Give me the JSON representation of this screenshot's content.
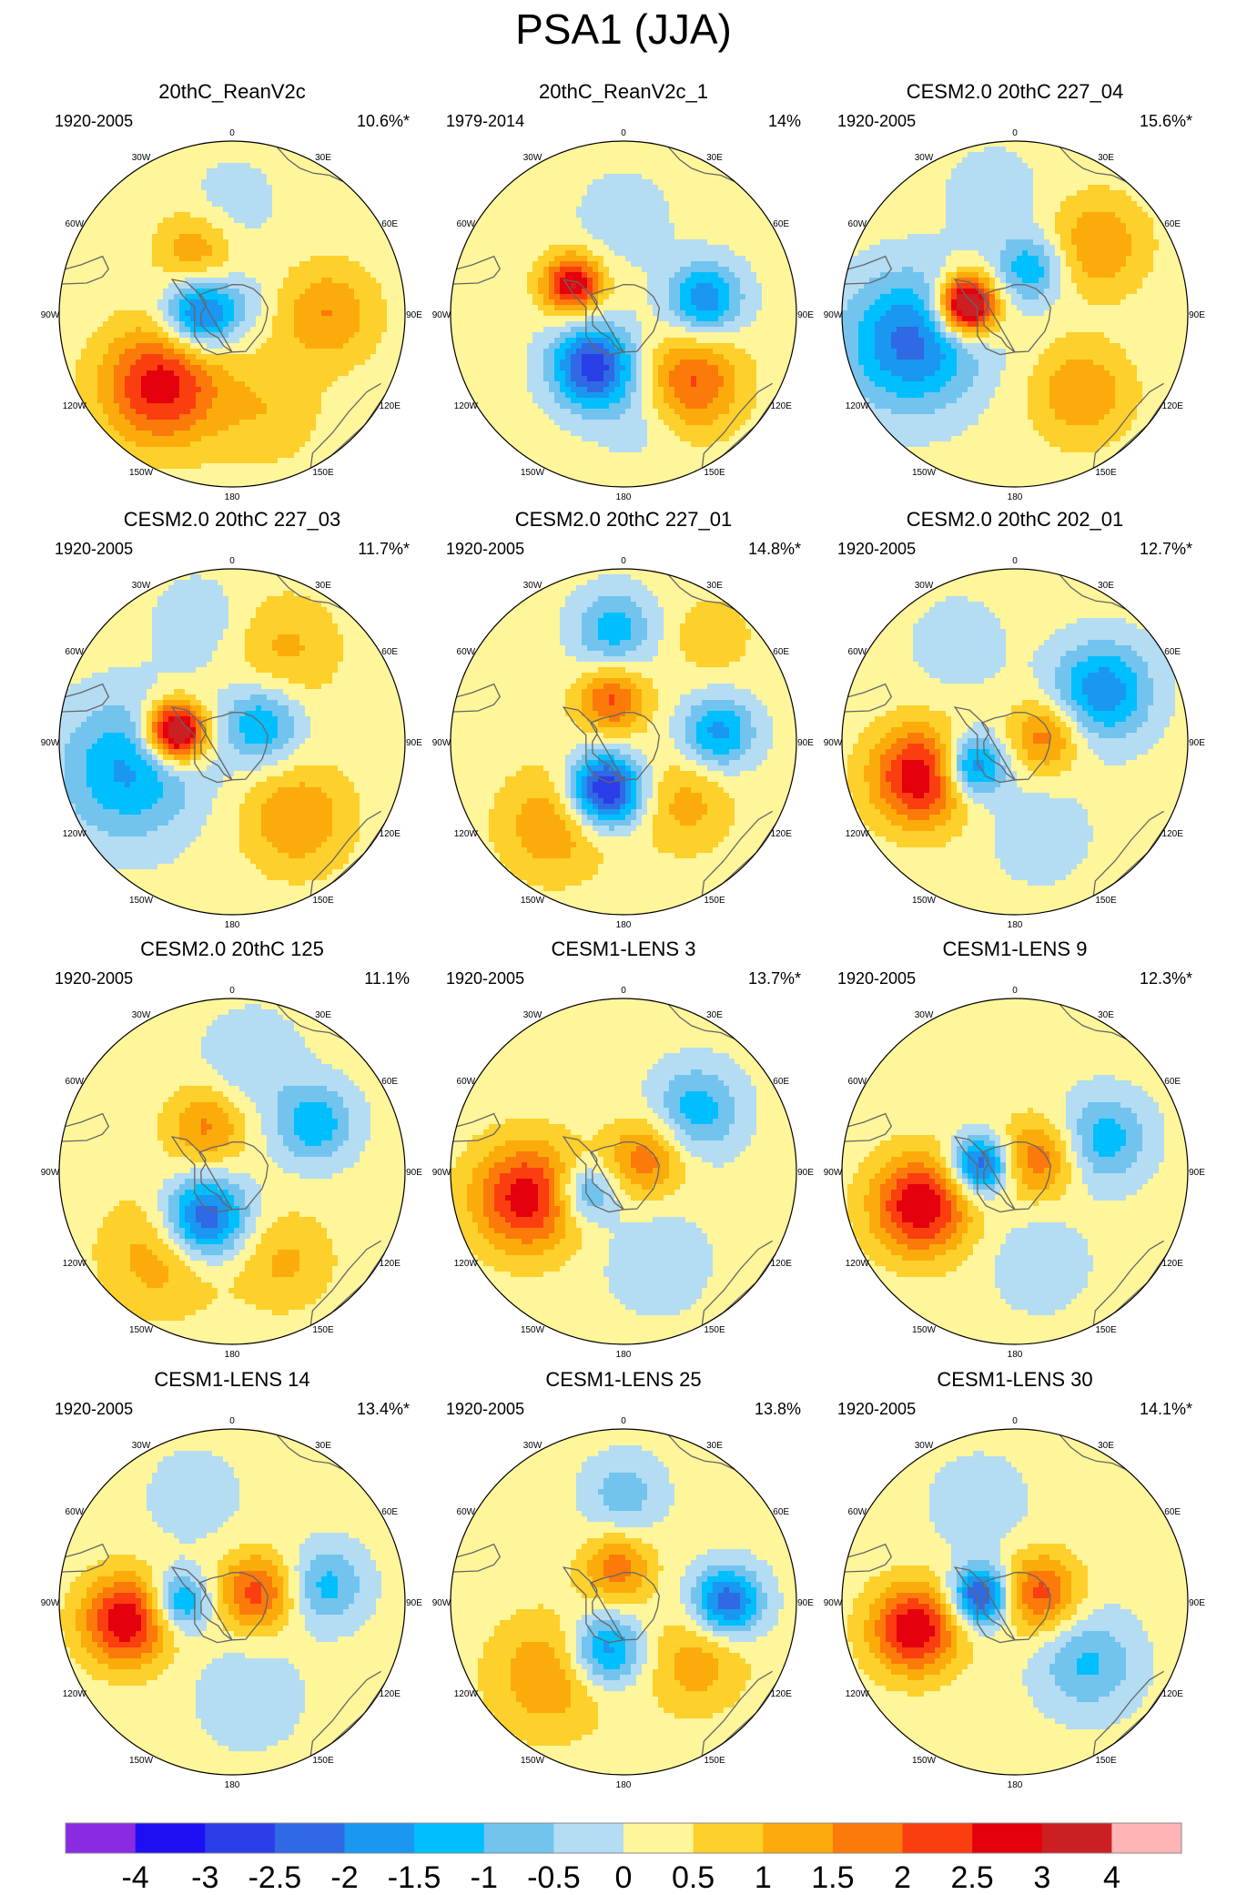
{
  "chart_data": {
    "type": "polar-contour-panels",
    "title": "PSA1 (JJA)",
    "colorbar": {
      "ticks": [
        "-4",
        "-3",
        "-2.5",
        "-2",
        "-1.5",
        "-1",
        "-0.5",
        "0",
        "0.5",
        "1",
        "1.5",
        "2",
        "2.5",
        "3",
        "4"
      ],
      "colors": [
        "#8a2be2",
        "#1e0ff2",
        "#2a3ee8",
        "#2f69e3",
        "#1a97f0",
        "#00bfff",
        "#72c4ee",
        "#b4dcf2",
        "#fff59a",
        "#fdd02c",
        "#fbac0a",
        "#fb7a0a",
        "#fb3e0f",
        "#e4000c",
        "#cc1f22",
        "#ffb4b6"
      ]
    },
    "lon_labels": [
      "0",
      "30E",
      "60E",
      "90E",
      "120E",
      "150E",
      "180",
      "150W",
      "120W",
      "90W",
      "60W",
      "30W"
    ],
    "panels": [
      {
        "title": "20thC_ReanV2c",
        "period": "1920-2005",
        "variance": "10.6%*",
        "features": [
          {
            "lon": 0,
            "r": 0.64,
            "v": -0.5,
            "s": 0.18
          },
          {
            "lon": -30,
            "r": 0.42,
            "v": 1.2,
            "s": 0.16
          },
          {
            "lon": -90,
            "r": 0.18,
            "v": -2.6,
            "s": 0.15
          },
          {
            "lon": -135,
            "r": 0.58,
            "v": 2.6,
            "s": 0.24
          },
          {
            "lon": 90,
            "r": 0.55,
            "v": 1.3,
            "s": 0.2
          },
          {
            "lon": 160,
            "r": 0.6,
            "v": 0.7,
            "s": 0.22
          },
          {
            "lon": 45,
            "r": 0.12,
            "v": -0.4,
            "s": 0.12
          }
        ]
      },
      {
        "title": "20thC_ReanV2c_1",
        "period": "1979-2014",
        "variance": "14%",
        "features": [
          {
            "lon": -60,
            "r": 0.34,
            "v": 2.9,
            "s": 0.12
          },
          {
            "lon": -150,
            "r": 0.35,
            "v": -3.0,
            "s": 0.17
          },
          {
            "lon": 80,
            "r": 0.48,
            "v": -2.1,
            "s": 0.15
          },
          {
            "lon": 135,
            "r": 0.56,
            "v": 1.9,
            "s": 0.2
          },
          {
            "lon": 170,
            "r": 0.6,
            "v": -0.5,
            "s": 0.18
          },
          {
            "lon": 0,
            "r": 0.55,
            "v": -0.5,
            "s": 0.2
          }
        ]
      },
      {
        "title": "CESM2.0 20thC 227_04",
        "period": "1920-2005",
        "variance": "15.6%*",
        "features": [
          {
            "lon": -80,
            "r": 0.28,
            "v": 4.4,
            "s": 0.12
          },
          {
            "lon": -105,
            "r": 0.62,
            "v": -2.4,
            "s": 0.27
          },
          {
            "lon": 50,
            "r": 0.62,
            "v": 1.3,
            "s": 0.2
          },
          {
            "lon": 20,
            "r": 0.28,
            "v": -1.6,
            "s": 0.14
          },
          {
            "lon": 140,
            "r": 0.6,
            "v": 1.3,
            "s": 0.2
          },
          {
            "lon": -10,
            "r": 0.7,
            "v": -0.5,
            "s": 0.2
          }
        ]
      },
      {
        "title": "CESM2.0 20thC 227_03",
        "period": "1920-2005",
        "variance": "11.7%*",
        "features": [
          {
            "lon": -80,
            "r": 0.33,
            "v": 4.2,
            "s": 0.12
          },
          {
            "lon": -105,
            "r": 0.62,
            "v": -1.8,
            "s": 0.28
          },
          {
            "lon": 60,
            "r": 0.2,
            "v": -1.7,
            "s": 0.16
          },
          {
            "lon": 140,
            "r": 0.58,
            "v": 1.3,
            "s": 0.22
          },
          {
            "lon": 30,
            "r": 0.62,
            "v": 0.9,
            "s": 0.22
          },
          {
            "lon": -15,
            "r": 0.72,
            "v": -0.6,
            "s": 0.18
          }
        ]
      },
      {
        "title": "CESM2.0 20thC 227_01",
        "period": "1920-2005",
        "variance": "14.8%*",
        "features": [
          {
            "lon": -160,
            "r": 0.3,
            "v": -3.6,
            "s": 0.15
          },
          {
            "lon": -15,
            "r": 0.25,
            "v": 1.9,
            "s": 0.14
          },
          {
            "lon": -5,
            "r": 0.65,
            "v": -1.5,
            "s": 0.16
          },
          {
            "lon": 85,
            "r": 0.55,
            "v": -1.9,
            "s": 0.15
          },
          {
            "lon": -140,
            "r": 0.62,
            "v": 1.3,
            "s": 0.22
          },
          {
            "lon": 135,
            "r": 0.5,
            "v": 1.0,
            "s": 0.2
          },
          {
            "lon": 40,
            "r": 0.8,
            "v": 0.8,
            "s": 0.15
          }
        ]
      },
      {
        "title": "CESM2.0 20thC 202_01",
        "period": "1920-2005",
        "variance": "12.7%*",
        "features": [
          {
            "lon": -110,
            "r": 0.58,
            "v": 2.8,
            "s": 0.2
          },
          {
            "lon": -120,
            "r": 0.28,
            "v": -2.6,
            "s": 0.13
          },
          {
            "lon": 60,
            "r": 0.58,
            "v": -2.1,
            "s": 0.2
          },
          {
            "lon": 80,
            "r": 0.18,
            "v": 1.6,
            "s": 0.15
          },
          {
            "lon": 165,
            "r": 0.55,
            "v": -0.6,
            "s": 0.2
          },
          {
            "lon": -30,
            "r": 0.65,
            "v": -0.5,
            "s": 0.2
          }
        ]
      }
    ],
    "panels_row3": [
      {
        "title": "CESM2.0 20thC 125",
        "period": "1920-2005",
        "variance": "11.1%",
        "features": [
          {
            "lon": -150,
            "r": 0.32,
            "v": -3.0,
            "s": 0.17
          },
          {
            "lon": -30,
            "r": 0.3,
            "v": 1.4,
            "s": 0.16
          },
          {
            "lon": 60,
            "r": 0.55,
            "v": -1.6,
            "s": 0.16
          },
          {
            "lon": -140,
            "r": 0.62,
            "v": 1.2,
            "s": 0.24
          },
          {
            "lon": 150,
            "r": 0.6,
            "v": 0.9,
            "s": 0.2
          },
          {
            "lon": 10,
            "r": 0.65,
            "v": -0.7,
            "s": 0.2
          }
        ]
      },
      {
        "title": "CESM1-LENS 3",
        "period": "1920-2005",
        "variance": "13.7%*",
        "features": [
          {
            "lon": -105,
            "r": 0.58,
            "v": 2.6,
            "s": 0.22
          },
          {
            "lon": -120,
            "r": 0.25,
            "v": -1.7,
            "s": 0.12
          },
          {
            "lon": 50,
            "r": 0.55,
            "v": -1.5,
            "s": 0.18
          },
          {
            "lon": 60,
            "r": 0.15,
            "v": 1.6,
            "s": 0.16
          },
          {
            "lon": 160,
            "r": 0.55,
            "v": -0.6,
            "s": 0.22
          }
        ]
      },
      {
        "title": "CESM1-LENS 9",
        "period": "1920-2005",
        "variance": "12.3%*",
        "features": [
          {
            "lon": -110,
            "r": 0.58,
            "v": 2.8,
            "s": 0.2
          },
          {
            "lon": -80,
            "r": 0.2,
            "v": -2.8,
            "s": 0.12
          },
          {
            "lon": 70,
            "r": 0.55,
            "v": -1.5,
            "s": 0.18
          },
          {
            "lon": 60,
            "r": 0.15,
            "v": 1.7,
            "s": 0.16
          },
          {
            "lon": 165,
            "r": 0.55,
            "v": -0.6,
            "s": 0.2
          }
        ]
      }
    ],
    "panels_row4": [
      {
        "title": "CESM1-LENS 14",
        "period": "1920-2005",
        "variance": "13.4%*",
        "features": [
          {
            "lon": -100,
            "r": 0.62,
            "v": 2.8,
            "s": 0.18
          },
          {
            "lon": -90,
            "r": 0.3,
            "v": -2.0,
            "s": 0.12
          },
          {
            "lon": 70,
            "r": 0.15,
            "v": 2.0,
            "s": 0.16
          },
          {
            "lon": 80,
            "r": 0.55,
            "v": -1.4,
            "s": 0.16
          },
          {
            "lon": 170,
            "r": 0.55,
            "v": -0.6,
            "s": 0.22
          },
          {
            "lon": -20,
            "r": 0.65,
            "v": -0.5,
            "s": 0.2
          }
        ]
      },
      {
        "title": "CESM1-LENS 25",
        "period": "1920-2005",
        "variance": "13.8%",
        "features": [
          {
            "lon": -160,
            "r": 0.3,
            "v": -2.2,
            "s": 0.15
          },
          {
            "lon": -10,
            "r": 0.2,
            "v": 1.6,
            "s": 0.14
          },
          {
            "lon": 0,
            "r": 0.62,
            "v": -1.0,
            "s": 0.16
          },
          {
            "lon": 90,
            "r": 0.6,
            "v": -2.6,
            "s": 0.14
          },
          {
            "lon": -135,
            "r": 0.6,
            "v": 1.3,
            "s": 0.24
          },
          {
            "lon": 130,
            "r": 0.55,
            "v": 1.1,
            "s": 0.2
          }
        ]
      },
      {
        "title": "CESM1-LENS 30",
        "period": "1920-2005",
        "variance": "14.1%*",
        "features": [
          {
            "lon": -105,
            "r": 0.6,
            "v": 2.8,
            "s": 0.18
          },
          {
            "lon": -80,
            "r": 0.2,
            "v": -3.0,
            "s": 0.12
          },
          {
            "lon": 70,
            "r": 0.15,
            "v": 2.0,
            "s": 0.16
          },
          {
            "lon": 130,
            "r": 0.55,
            "v": -1.3,
            "s": 0.2
          },
          {
            "lon": -20,
            "r": 0.6,
            "v": -0.6,
            "s": 0.2
          }
        ]
      }
    ]
  }
}
